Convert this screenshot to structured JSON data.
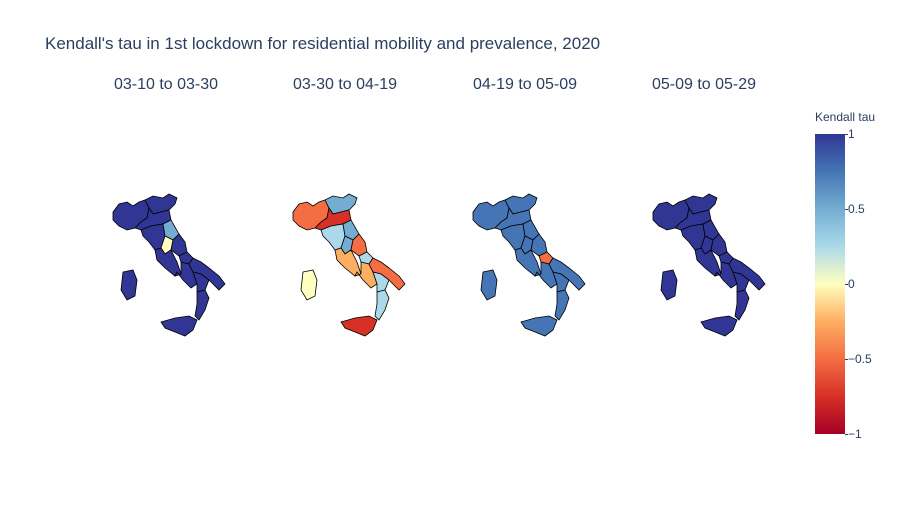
{
  "title": "Kendall's tau in 1st lockdown for residential mobility and prevalence, 2020",
  "colorbar": {
    "title": "Kendall tau",
    "ticks": [
      "1",
      "0.5",
      "0",
      "−0.5",
      "−1"
    ],
    "range": [
      -1,
      1
    ],
    "colorscale": [
      "#313695",
      "#4575b4",
      "#74add1",
      "#abd9e9",
      "#ffffbf",
      "#fdae61",
      "#f46d43",
      "#d73027",
      "#a50026"
    ]
  },
  "maps": [
    {
      "subtitle": "03-10 to 03-30",
      "regions": {
        "north_west": 0.92,
        "north_east": 0.92,
        "emilia": 0.92,
        "tuscany": 0.92,
        "marche": 0.6,
        "umbria": 0.05,
        "lazio": 0.92,
        "abruzzo": 0.92,
        "molise": 0.92,
        "campania": 0.92,
        "apulia": 0.92,
        "basilicata": 0.92,
        "calabria": 0.92,
        "sicily": 0.92,
        "sardinia": 0.92
      }
    },
    {
      "subtitle": "03-30 to 04-19",
      "regions": {
        "north_west": -0.6,
        "north_east": 0.6,
        "emilia": -0.65,
        "tuscany": 0.2,
        "marche": 0.6,
        "umbria": 0.55,
        "lazio": -0.3,
        "abruzzo": -0.6,
        "molise": 0.2,
        "campania": -0.3,
        "apulia": -0.4,
        "basilicata": 0.2,
        "calabria": 0.15,
        "sicily": -0.65,
        "sardinia": 0.05
      }
    },
    {
      "subtitle": "04-19 to 05-09",
      "regions": {
        "north_west": 0.78,
        "north_east": 0.78,
        "emilia": 0.78,
        "tuscany": 0.78,
        "marche": 0.78,
        "umbria": 0.78,
        "lazio": 0.78,
        "abruzzo": 0.78,
        "molise": -0.45,
        "campania": 0.78,
        "apulia": 0.78,
        "basilicata": 0.78,
        "calabria": 0.78,
        "sicily": 0.78,
        "sardinia": 0.78
      }
    },
    {
      "subtitle": "05-09 to 05-29",
      "regions": {
        "north_west": 0.92,
        "north_east": 0.92,
        "emilia": 0.92,
        "tuscany": 0.92,
        "marche": 0.92,
        "umbria": 0.92,
        "lazio": 0.92,
        "abruzzo": 0.92,
        "molise": 0.92,
        "campania": 0.92,
        "apulia": 0.92,
        "basilicata": 0.92,
        "calabria": 0.92,
        "sicily": 0.92,
        "sardinia": 0.92
      }
    }
  ]
}
